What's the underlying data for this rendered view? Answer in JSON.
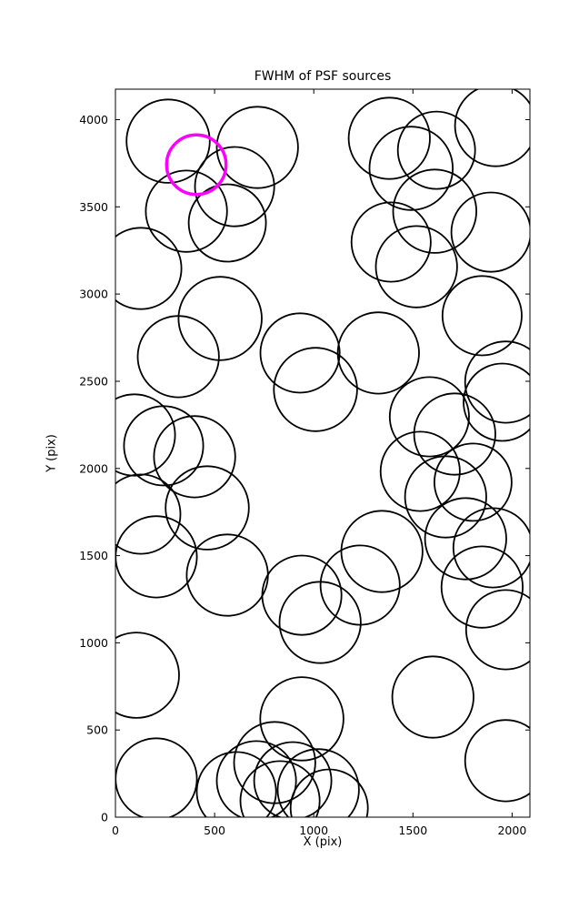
{
  "chart_data": {
    "type": "scatter",
    "title": "FWHM of PSF sources",
    "xlabel": "X (pix)",
    "ylabel": "Y (pix)",
    "xlim": [
      0,
      2090
    ],
    "ylim": [
      0,
      4175
    ],
    "xticks": [
      0,
      500,
      1000,
      1500,
      2000
    ],
    "yticks": [
      0,
      500,
      1000,
      1500,
      2000,
      2500,
      3000,
      3500,
      4000
    ],
    "grid": false,
    "legend": "none",
    "circle_color": "#000000",
    "highlight_color": "#ff00ff",
    "circles": [
      {
        "x": 266,
        "y": 3877,
        "r": 210
      },
      {
        "x": 716,
        "y": 3841,
        "r": 205
      },
      {
        "x": 601,
        "y": 3616,
        "r": 200
      },
      {
        "x": 358,
        "y": 3475,
        "r": 205
      },
      {
        "x": 564,
        "y": 3408,
        "r": 195
      },
      {
        "x": 1381,
        "y": 3893,
        "r": 205
      },
      {
        "x": 1491,
        "y": 3721,
        "r": 210
      },
      {
        "x": 1619,
        "y": 3825,
        "r": 195
      },
      {
        "x": 1917,
        "y": 3966,
        "r": 205
      },
      {
        "x": 1610,
        "y": 3475,
        "r": 210
      },
      {
        "x": 1390,
        "y": 3298,
        "r": 200
      },
      {
        "x": 1518,
        "y": 3157,
        "r": 205
      },
      {
        "x": 1894,
        "y": 3355,
        "r": 200
      },
      {
        "x": 128,
        "y": 3147,
        "r": 205
      },
      {
        "x": 528,
        "y": 2860,
        "r": 210
      },
      {
        "x": 317,
        "y": 2641,
        "r": 205
      },
      {
        "x": 931,
        "y": 2662,
        "r": 200
      },
      {
        "x": 1009,
        "y": 2453,
        "r": 210
      },
      {
        "x": 1326,
        "y": 2662,
        "r": 205
      },
      {
        "x": 1849,
        "y": 2876,
        "r": 200
      },
      {
        "x": 1968,
        "y": 2495,
        "r": 205
      },
      {
        "x": 1950,
        "y": 2380,
        "r": 195
      },
      {
        "x": 96,
        "y": 2192,
        "r": 205
      },
      {
        "x": 243,
        "y": 2130,
        "r": 200
      },
      {
        "x": 399,
        "y": 2067,
        "r": 205
      },
      {
        "x": 463,
        "y": 1774,
        "r": 210
      },
      {
        "x": 128,
        "y": 1738,
        "r": 200
      },
      {
        "x": 206,
        "y": 1493,
        "r": 205
      },
      {
        "x": 564,
        "y": 1388,
        "r": 205
      },
      {
        "x": 940,
        "y": 1273,
        "r": 200
      },
      {
        "x": 1032,
        "y": 1117,
        "r": 205
      },
      {
        "x": 1234,
        "y": 1331,
        "r": 200
      },
      {
        "x": 1344,
        "y": 1524,
        "r": 205
      },
      {
        "x": 1583,
        "y": 2296,
        "r": 200
      },
      {
        "x": 1711,
        "y": 2197,
        "r": 205
      },
      {
        "x": 1537,
        "y": 1983,
        "r": 200
      },
      {
        "x": 1665,
        "y": 1837,
        "r": 205
      },
      {
        "x": 1803,
        "y": 1921,
        "r": 195
      },
      {
        "x": 1766,
        "y": 1597,
        "r": 205
      },
      {
        "x": 1904,
        "y": 1545,
        "r": 200
      },
      {
        "x": 1849,
        "y": 1320,
        "r": 205
      },
      {
        "x": 1968,
        "y": 1075,
        "r": 200
      },
      {
        "x": 106,
        "y": 814,
        "r": 215
      },
      {
        "x": 206,
        "y": 219,
        "r": 205
      },
      {
        "x": 940,
        "y": 564,
        "r": 210
      },
      {
        "x": 803,
        "y": 313,
        "r": 205
      },
      {
        "x": 711,
        "y": 209,
        "r": 200
      },
      {
        "x": 894,
        "y": 209,
        "r": 195
      },
      {
        "x": 1023,
        "y": 157,
        "r": 205
      },
      {
        "x": 830,
        "y": 94,
        "r": 200
      },
      {
        "x": 1078,
        "y": 52,
        "r": 195
      },
      {
        "x": 610,
        "y": 146,
        "r": 200
      },
      {
        "x": 1601,
        "y": 689,
        "r": 205
      },
      {
        "x": 1968,
        "y": 324,
        "r": 205
      }
    ],
    "highlight": {
      "x": 408,
      "y": 3742,
      "r": 150
    }
  }
}
